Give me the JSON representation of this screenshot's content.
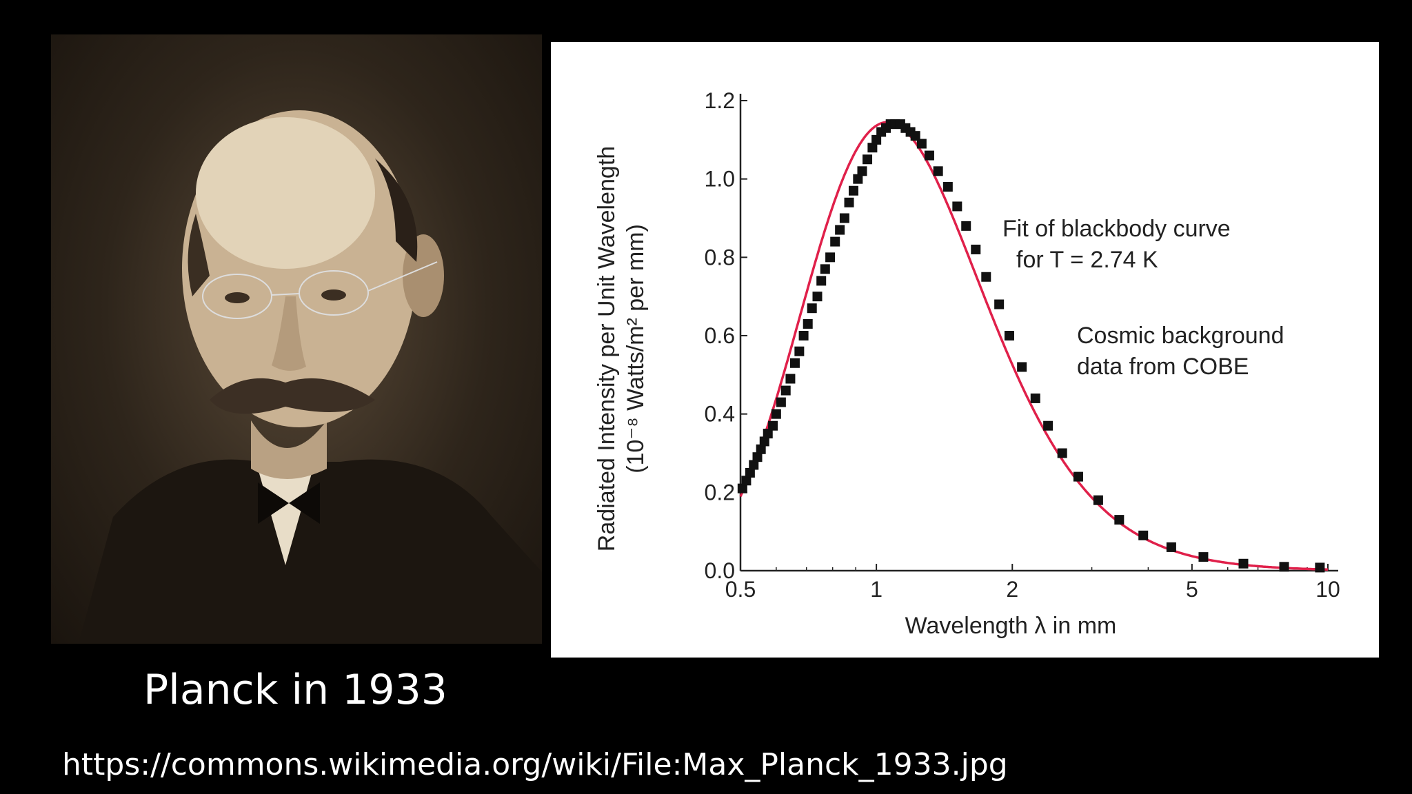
{
  "caption": "Planck in 1933",
  "source_url": "https://commons.wikimedia.org/wiki/File:Max_Planck_1933.jpg",
  "colors": {
    "background": "#000000",
    "curve": "#e0204a",
    "points": "#111111"
  },
  "chart_data": {
    "type": "scatter",
    "x_scale": "log",
    "xlabel": "Wavelength λ in mm",
    "ylabel_line1": "Radiated Intensity per Unit Wavelength",
    "ylabel_line2": "(10⁻⁸ Watts/m² per mm)",
    "xlim": [
      0.5,
      10
    ],
    "ylim": [
      0,
      1.2
    ],
    "x_ticks": [
      0.5,
      1,
      2,
      5,
      10
    ],
    "x_tick_labels": [
      "0.5",
      "1",
      "2",
      "5",
      "10"
    ],
    "y_ticks": [
      0,
      0.2,
      0.4,
      0.6,
      0.8,
      1.0,
      1.2
    ],
    "y_tick_labels": [
      "0.0",
      "0.2",
      "0.4",
      "0.6",
      "0.8",
      "1.0",
      "1.2"
    ],
    "annotations": {
      "fit_line1": "Fit of blackbody curve",
      "fit_line2": "for T = 2.74 K",
      "data_line1": "Cosmic background",
      "data_line2": "data from COBE"
    },
    "series": [
      {
        "name": "Cosmic background data from COBE",
        "points": [
          [
            0.505,
            0.21
          ],
          [
            0.515,
            0.23
          ],
          [
            0.525,
            0.25
          ],
          [
            0.535,
            0.27
          ],
          [
            0.545,
            0.29
          ],
          [
            0.555,
            0.31
          ],
          [
            0.565,
            0.33
          ],
          [
            0.575,
            0.35
          ],
          [
            0.59,
            0.37
          ],
          [
            0.6,
            0.4
          ],
          [
            0.615,
            0.43
          ],
          [
            0.63,
            0.46
          ],
          [
            0.645,
            0.49
          ],
          [
            0.66,
            0.53
          ],
          [
            0.675,
            0.56
          ],
          [
            0.69,
            0.6
          ],
          [
            0.705,
            0.63
          ],
          [
            0.72,
            0.67
          ],
          [
            0.74,
            0.7
          ],
          [
            0.755,
            0.74
          ],
          [
            0.77,
            0.77
          ],
          [
            0.79,
            0.8
          ],
          [
            0.81,
            0.84
          ],
          [
            0.83,
            0.87
          ],
          [
            0.85,
            0.9
          ],
          [
            0.87,
            0.94
          ],
          [
            0.89,
            0.97
          ],
          [
            0.91,
            1.0
          ],
          [
            0.93,
            1.02
          ],
          [
            0.955,
            1.05
          ],
          [
            0.98,
            1.08
          ],
          [
            1.0,
            1.1
          ],
          [
            1.025,
            1.12
          ],
          [
            1.05,
            1.13
          ],
          [
            1.075,
            1.14
          ],
          [
            1.1,
            1.14
          ],
          [
            1.13,
            1.14
          ],
          [
            1.16,
            1.13
          ],
          [
            1.19,
            1.12
          ],
          [
            1.22,
            1.11
          ],
          [
            1.26,
            1.09
          ],
          [
            1.31,
            1.06
          ],
          [
            1.37,
            1.02
          ],
          [
            1.44,
            0.98
          ],
          [
            1.51,
            0.93
          ],
          [
            1.58,
            0.88
          ],
          [
            1.66,
            0.82
          ],
          [
            1.75,
            0.75
          ],
          [
            1.87,
            0.68
          ],
          [
            1.97,
            0.6
          ],
          [
            2.1,
            0.52
          ],
          [
            2.25,
            0.44
          ],
          [
            2.4,
            0.37
          ],
          [
            2.58,
            0.3
          ],
          [
            2.8,
            0.24
          ],
          [
            3.1,
            0.18
          ],
          [
            3.45,
            0.13
          ],
          [
            3.9,
            0.09
          ],
          [
            4.5,
            0.06
          ],
          [
            5.3,
            0.035
          ],
          [
            6.5,
            0.018
          ],
          [
            8.0,
            0.01
          ],
          [
            9.6,
            0.008
          ]
        ]
      },
      {
        "name": "Fit of blackbody curve for T = 2.74 K",
        "temperature_K": 2.74,
        "peak_value": 1.145
      }
    ]
  }
}
